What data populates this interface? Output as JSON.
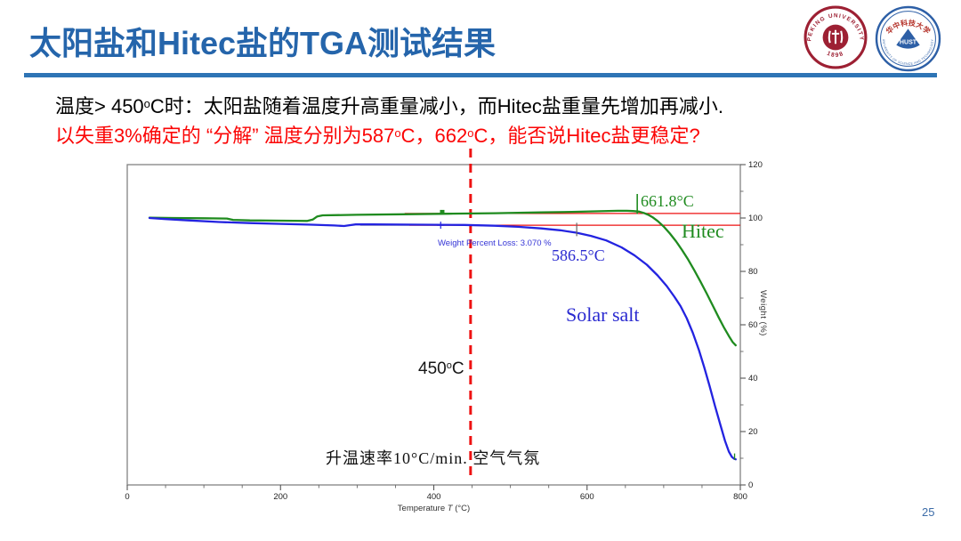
{
  "slide": {
    "title": "太阳盐和Hitec盐的TGA测试结果",
    "page_number": "25",
    "intro_line1": {
      "pre": "温度> 450",
      "sup": "o",
      "post": "C时：太阳盐随着温度升高重量减小，而Hitec盐重量先增加再减小."
    },
    "intro_line2": {
      "pre": "以失重3%确定的 “分解” 温度分别为587",
      "sup1": "o",
      "mid": "C，662",
      "sup2": "o",
      "post": "C，能否说Hitec盐更稳定?"
    }
  },
  "logos": {
    "pku": {
      "name": "Peking University seal",
      "ring_text": "PEKING UNIVERSITY",
      "year_text": "1898",
      "color": "#9d2033"
    },
    "hust": {
      "name": "Huazhong University of Science and Technology emblem",
      "ring_text_top": "华中科技大学",
      "ring_text_bottom": "UNIVERSITY OF SCIENCE AND TECHNOLOGY",
      "center_text": "HUST",
      "color": "#2d5fa6",
      "accent": "#b5342c"
    }
  },
  "chart_data": {
    "type": "line",
    "xlabel": {
      "pre": "Temperature ",
      "italic": "T",
      "post": " (°C)"
    },
    "ylabel": "Weight  (%)",
    "xlim": [
      0,
      800
    ],
    "ylim": [
      0,
      120
    ],
    "x_ticks": [
      0,
      200,
      400,
      600,
      800
    ],
    "x_minor_step": 50,
    "y_ticks": [
      0,
      20,
      40,
      60,
      80,
      100,
      120
    ],
    "y_minor_step": 10,
    "grid": false,
    "legend_position": "labels-on-curves",
    "frame_color": "#828282",
    "series": [
      {
        "name": "Hitec",
        "color": "#1f8b1f",
        "points": [
          [
            29,
            100.1
          ],
          [
            60,
            100
          ],
          [
            100,
            99.9
          ],
          [
            130,
            99.8
          ],
          [
            138,
            99.3
          ],
          [
            160,
            99.1
          ],
          [
            200,
            99
          ],
          [
            235,
            98.9
          ],
          [
            242,
            99.4
          ],
          [
            248,
            100.6
          ],
          [
            255,
            101
          ],
          [
            300,
            101.2
          ],
          [
            360,
            101.4
          ],
          [
            420,
            101.6
          ],
          [
            480,
            101.8
          ],
          [
            540,
            102.1
          ],
          [
            580,
            102.3
          ],
          [
            610,
            102.5
          ],
          [
            640,
            102.7
          ],
          [
            652,
            102.7
          ],
          [
            660,
            102.6
          ],
          [
            668,
            102.4
          ],
          [
            674,
            101.9
          ],
          [
            680,
            101.2
          ],
          [
            686,
            100.2
          ],
          [
            692,
            98.9
          ],
          [
            700,
            96.8
          ],
          [
            708,
            94.2
          ],
          [
            716,
            91.3
          ],
          [
            724,
            88
          ],
          [
            732,
            84.4
          ],
          [
            740,
            80.4
          ],
          [
            748,
            76.2
          ],
          [
            756,
            71.8
          ],
          [
            764,
            67.2
          ],
          [
            772,
            62.6
          ],
          [
            779,
            58.8
          ],
          [
            785,
            55.8
          ],
          [
            790,
            53.5
          ],
          [
            794,
            52.3
          ]
        ]
      },
      {
        "name": "Solar salt",
        "color": "#2323e0",
        "points": [
          [
            29,
            100
          ],
          [
            50,
            99.6
          ],
          [
            80,
            99.1
          ],
          [
            120,
            98.5
          ],
          [
            160,
            98.1
          ],
          [
            200,
            97.8
          ],
          [
            240,
            97.5
          ],
          [
            270,
            97.2
          ],
          [
            283,
            97
          ],
          [
            290,
            97.3
          ],
          [
            298,
            97.6
          ],
          [
            320,
            97.6
          ],
          [
            380,
            97.5
          ],
          [
            440,
            97.4
          ],
          [
            480,
            97.1
          ],
          [
            510,
            96.7
          ],
          [
            540,
            96.1
          ],
          [
            565,
            95.4
          ],
          [
            586,
            94.5
          ],
          [
            605,
            93.3
          ],
          [
            625,
            91.6
          ],
          [
            645,
            89
          ],
          [
            662,
            86
          ],
          [
            678,
            82.5
          ],
          [
            692,
            78.5
          ],
          [
            704,
            74.5
          ],
          [
            714,
            70.5
          ],
          [
            722,
            67
          ],
          [
            730,
            62.5
          ],
          [
            738,
            57
          ],
          [
            746,
            50.5
          ],
          [
            753,
            44
          ],
          [
            760,
            37
          ],
          [
            767,
            29.5
          ],
          [
            774,
            22.5
          ],
          [
            780,
            16.5
          ],
          [
            785,
            12.5
          ],
          [
            789,
            10.5
          ],
          [
            792,
            9.8
          ],
          [
            794,
            9.6
          ]
        ]
      }
    ],
    "annotations": {
      "accent_red": "#ee1111",
      "vline": {
        "T": 448,
        "label": {
          "pre": "450",
          "sup": "o",
          "post": "C"
        }
      },
      "hline_top": {
        "W": 101.7,
        "T_start": 362
      },
      "hline_bottom": {
        "W": 97.3,
        "T_start": 368,
        "gray_lead_T_start": 304,
        "gray_color": "#9a9a9a"
      },
      "weight_loss_text": "Weight Percent Loss: 3.070 %",
      "solar_temp": "586.5°C",
      "hitec_temp": "661.8°C",
      "series_label_hitec": "Hitec",
      "series_label_solar": "Solar salt",
      "condition": "升温速率10°C/min. 空气气氛",
      "markers": {
        "hitec_start_square": {
          "T": 411,
          "W": 102.2
        },
        "solar_start_plus": {
          "T": 409,
          "W": 97.3
        },
        "solar_cross_tick": {
          "T": 586.5,
          "W_low": 93.2,
          "W_high": 98.2,
          "color": "#666666"
        },
        "hitec_cross_tick": {
          "T": 665.5,
          "W_low": 101.5,
          "W_high": 109
        },
        "solar_end_tick": {
          "T": 792.5,
          "W_low": 9.4,
          "W_high": 11.8
        }
      }
    }
  }
}
